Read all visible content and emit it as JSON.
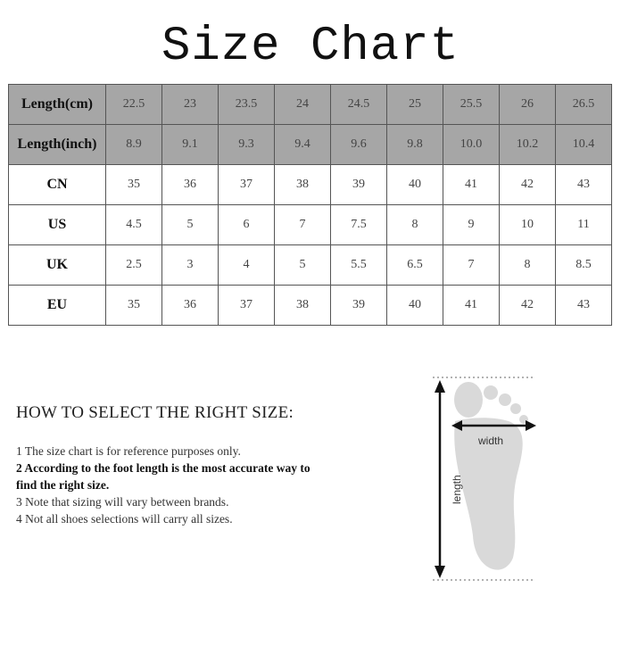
{
  "title": "Size Chart",
  "table": {
    "rows": [
      {
        "label": "Length(cm)",
        "values": [
          "22.5",
          "23",
          "23.5",
          "24",
          "24.5",
          "25",
          "25.5",
          "26",
          "26.5"
        ]
      },
      {
        "label": "Length(inch)",
        "values": [
          "8.9",
          "9.1",
          "9.3",
          "9.4",
          "9.6",
          "9.8",
          "10.0",
          "10.2",
          "10.4"
        ]
      },
      {
        "label": "CN",
        "values": [
          "35",
          "36",
          "37",
          "38",
          "39",
          "40",
          "41",
          "42",
          "43"
        ]
      },
      {
        "label": "US",
        "values": [
          "4.5",
          "5",
          "6",
          "7",
          "7.5",
          "8",
          "9",
          "10",
          "11"
        ]
      },
      {
        "label": "UK",
        "values": [
          "2.5",
          "3",
          "4",
          "5",
          "5.5",
          "6.5",
          "7",
          "8",
          "8.5"
        ]
      },
      {
        "label": "EU",
        "values": [
          "35",
          "36",
          "37",
          "38",
          "39",
          "40",
          "41",
          "42",
          "43"
        ]
      }
    ],
    "header_color": "#a6a6a6"
  },
  "guide": {
    "heading": "HOW TO SELECT THE RIGHT SIZE:",
    "tips": [
      "1 The size chart is for reference purposes only.",
      "2 According to the foot length is the most accurate way to find the right size.",
      "3 Note that sizing will vary between brands.",
      "4 Not all shoes selections will carry all sizes."
    ]
  },
  "diagram": {
    "width_label": "width",
    "length_label": "length"
  }
}
